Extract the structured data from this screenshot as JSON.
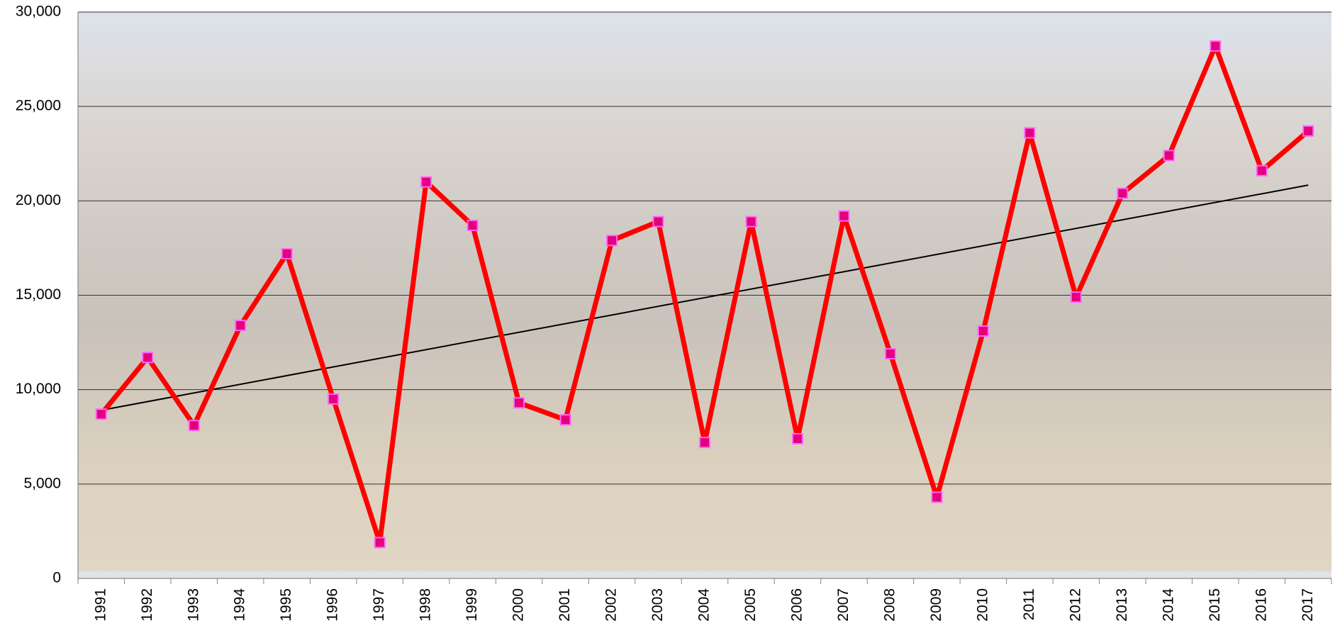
{
  "chart_data": {
    "type": "line",
    "categories": [
      "1991",
      "1992",
      "1993",
      "1994",
      "1995",
      "1996",
      "1997",
      "1998",
      "1999",
      "2000",
      "2001",
      "2002",
      "2003",
      "2004",
      "2005",
      "2006",
      "2007",
      "2008",
      "2009",
      "2010",
      "2011",
      "2012",
      "2013",
      "2014",
      "2015",
      "2016",
      "2017"
    ],
    "series": [
      {
        "values": [
          8700,
          11700,
          8100,
          13400,
          17200,
          9500,
          1900,
          21000,
          18700,
          9300,
          8400,
          17900,
          18900,
          7200,
          18900,
          7400,
          19200,
          11900,
          4300,
          13100,
          23600,
          14900,
          20400,
          22400,
          28200,
          21600,
          23700
        ],
        "color": "#ff0000",
        "marker_color": "#e4007c"
      }
    ],
    "ylim": [
      0,
      30000
    ],
    "yticks": [
      0,
      {
        "value": 5000,
        "label": "5,000"
      },
      {
        "value": 10000,
        "label": "10,000"
      },
      {
        "value": 15000,
        "label": "15,000"
      },
      {
        "value": 20000,
        "label": "20,000"
      },
      {
        "value": 25000,
        "label": "25,000"
      },
      {
        "value": 30000,
        "label": "30,000"
      }
    ],
    "grid": true,
    "trendline": true,
    "trendline_color": "#000000"
  }
}
